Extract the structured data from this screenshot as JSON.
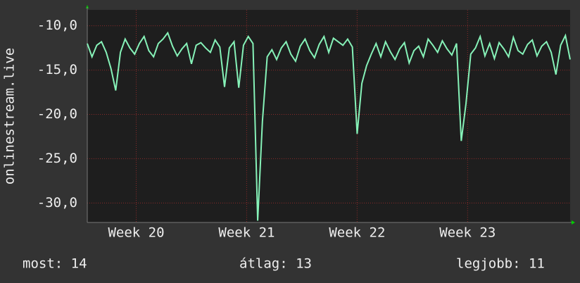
{
  "chart_data": {
    "type": "line",
    "y_label": "onlinestream.live",
    "x": [
      0,
      0.3,
      0.6,
      0.9,
      1.2,
      1.5,
      1.8,
      2.1,
      2.4,
      2.7,
      3,
      3.3,
      3.6,
      3.9,
      4.2,
      4.5,
      4.8,
      5.1,
      5.4,
      5.7,
      6,
      6.3,
      6.6,
      6.9,
      7.2,
      7.5,
      7.8,
      8.1,
      8.4,
      8.7,
      9,
      9.3,
      9.6,
      9.9,
      10.2,
      10.5,
      10.8,
      11.1,
      11.4,
      11.7,
      12,
      12.3,
      12.6,
      12.9,
      13.2,
      13.5,
      13.8,
      14.1,
      14.4,
      14.7,
      15,
      15.3,
      15.6,
      15.9,
      16.2,
      16.5,
      16.8,
      17.1,
      17.4,
      17.7,
      18,
      18.3,
      18.6,
      18.9,
      19.2,
      19.5,
      19.8,
      20.1,
      20.4,
      20.7,
      21,
      21.3,
      21.6,
      21.9,
      22.2,
      22.5,
      22.8,
      23.1,
      23.4,
      23.7,
      24,
      24.3,
      24.6,
      24.9,
      25.2,
      25.5,
      25.8,
      26.1,
      26.4,
      26.7,
      27,
      27.3,
      27.6,
      27.9,
      28.2,
      28.5,
      28.8,
      29.1,
      29.4,
      29.7,
      30,
      30.3,
      30.6
    ],
    "series": [
      {
        "color": "#86f2b8",
        "values": [
          -12,
          -13.5,
          -12.2,
          -11.8,
          -13,
          -14.8,
          -17.3,
          -13,
          -11.5,
          -12.5,
          -13.2,
          -12,
          -11.2,
          -12.8,
          -13.5,
          -12,
          -11.5,
          -10.8,
          -12.3,
          -13.4,
          -12.6,
          -12,
          -14.3,
          -12.2,
          -11.9,
          -12.5,
          -13,
          -11.6,
          -12.4,
          -16.9,
          -12.5,
          -11.8,
          -17,
          -12.2,
          -11.2,
          -12,
          -32,
          -20.8,
          -13.5,
          -12.7,
          -13.8,
          -12.5,
          -11.8,
          -13.2,
          -14,
          -12.3,
          -11.5,
          -12.8,
          -13.6,
          -12.1,
          -11.2,
          -13,
          -11.4,
          -11.8,
          -12.2,
          -11.5,
          -12.4,
          -22.2,
          -16.5,
          -14.5,
          -13.2,
          -12,
          -13.5,
          -11.8,
          -12.9,
          -13.8,
          -12.6,
          -11.9,
          -14.2,
          -12.8,
          -12.3,
          -13.5,
          -11.5,
          -12.2,
          -13,
          -11.7,
          -12.6,
          -13.3,
          -12,
          -23,
          -18.8,
          -13.2,
          -12.5,
          -11.2,
          -13.4,
          -12,
          -13.7,
          -11.9,
          -12.6,
          -13.5,
          -11.3,
          -12.8,
          -13.2,
          -12.1,
          -11.6,
          -13.4,
          -12.3,
          -11.8,
          -13,
          -15.5,
          -12.2,
          -11.1,
          -13.8
        ]
      }
    ],
    "xlim": [
      0,
      30.6
    ],
    "xticks": [
      {
        "value": 3.1,
        "label": "Week 20"
      },
      {
        "value": 10.1,
        "label": "Week 21"
      },
      {
        "value": 17.1,
        "label": "Week 22"
      },
      {
        "value": 24.1,
        "label": "Week 23"
      }
    ],
    "ylim": [
      -32.2,
      -8.2
    ],
    "yticks": [
      {
        "value": -30,
        "label": "-30,0"
      },
      {
        "value": -25,
        "label": "-25,0"
      },
      {
        "value": -20,
        "label": "-20,0"
      },
      {
        "value": -15,
        "label": "-15,0"
      },
      {
        "value": -10,
        "label": "-10,0"
      }
    ],
    "grid": true,
    "footer": [
      "most: 14",
      "átlag: 13",
      "legjobb: 11"
    ]
  }
}
